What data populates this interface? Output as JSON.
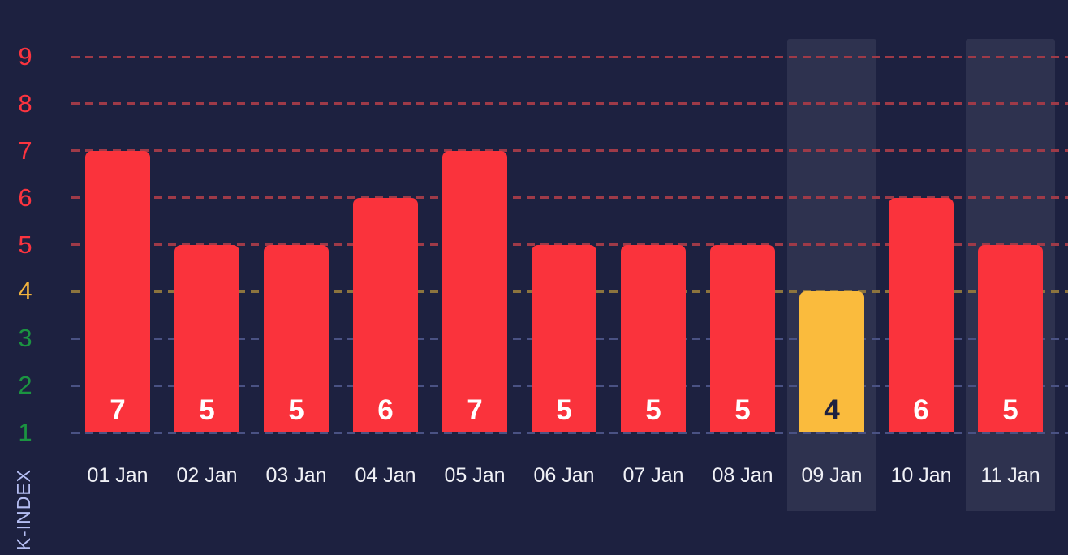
{
  "chart_data": {
    "type": "bar",
    "categories": [
      "01 Jan",
      "02 Jan",
      "03 Jan",
      "04 Jan",
      "05 Jan",
      "06 Jan",
      "07 Jan",
      "08 Jan",
      "09 Jan",
      "10 Jan",
      "11 Jan"
    ],
    "values": [
      7,
      5,
      5,
      6,
      7,
      5,
      5,
      5,
      4,
      6,
      5
    ],
    "ylabel": "K-INDEX",
    "xlabel": "",
    "title": "",
    "yticks": [
      1,
      2,
      3,
      4,
      5,
      6,
      7,
      8,
      9
    ],
    "ylim": [
      1,
      9.4
    ],
    "grid": "dashed-horizontal",
    "legend": "none",
    "bar_value_labels_shown": true,
    "highlighted_categories": [
      "09 Jan",
      "11 Jan"
    ],
    "color_thresholds": {
      "high_min": 5,
      "moderate_value": 4
    }
  },
  "colors": {
    "background": "#1d2140",
    "bar_high": "#fa333c",
    "bar_moderate": "#fabb3d",
    "value_text_on_high": "#ffffff",
    "value_text_on_moderate": "#1d2140",
    "tick_high": "#fb343f",
    "tick_moderate": "#f1b23c",
    "tick_low": "#1b9441",
    "grid_high": "#9e3a48",
    "grid_moderate": "#8c743e",
    "grid_low": "#4a5284",
    "date_label": "#f0f1f6",
    "axis_title": "#b4bdf2",
    "highlight_band": "rgba(255,255,255,0.08)"
  }
}
